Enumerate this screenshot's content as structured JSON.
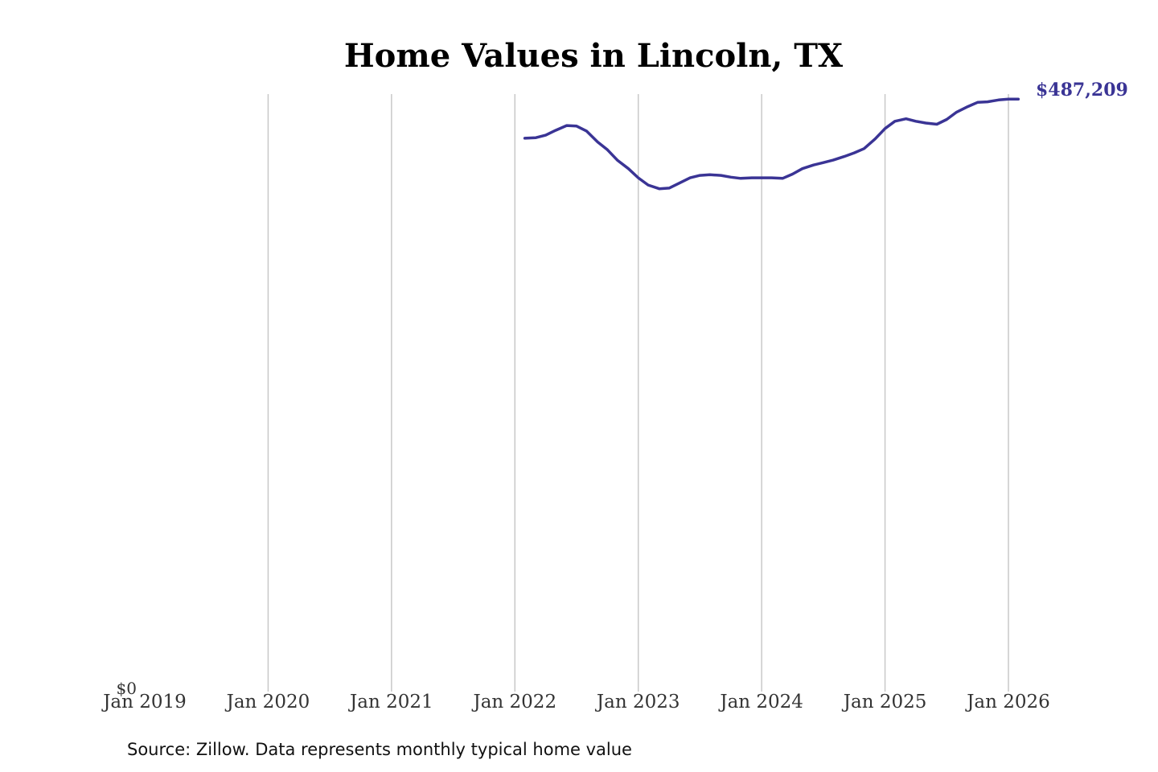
{
  "chart_data": {
    "type": "line",
    "title": "Home Values in Lincoln, TX",
    "source": "Source: Zillow. Data represents monthly typical home value",
    "x_ticks": [
      "Jan 2019",
      "Jan 2020",
      "Jan 2021",
      "Jan 2022",
      "Jan 2023",
      "Jan 2024",
      "Jan 2025",
      "Jan 2026"
    ],
    "y_tick_label": "$0",
    "ylim": [
      0,
      490000
    ],
    "xlim": [
      2019.0,
      2026.0
    ],
    "grid": "vertical",
    "line_color": "#3a3495",
    "end_label": "$487,209",
    "series": [
      {
        "x": [
          2022.08,
          2022.17,
          2022.25,
          2022.33,
          2022.42,
          2022.5,
          2022.58,
          2022.67,
          2022.75,
          2022.83,
          2022.92,
          2023.0,
          2023.08,
          2023.17,
          2023.25,
          2023.33,
          2023.42,
          2023.5,
          2023.58,
          2023.67,
          2023.75,
          2023.83,
          2023.92,
          2024.0,
          2024.08,
          2024.17,
          2024.25,
          2024.33,
          2024.42,
          2024.5,
          2024.58,
          2024.67,
          2024.75,
          2024.83,
          2024.92,
          2025.0,
          2025.08,
          2025.17,
          2025.25,
          2025.33,
          2025.42,
          2025.5,
          2025.58,
          2025.67,
          2025.75,
          2025.83,
          2025.92,
          2026.0,
          2026.08
        ],
        "values": [
          455000,
          455500,
          457500,
          461500,
          465500,
          465000,
          461000,
          452000,
          445500,
          437000,
          430000,
          422500,
          416500,
          413500,
          414000,
          418000,
          422500,
          424500,
          425000,
          424500,
          423000,
          422000,
          422500,
          422500,
          422500,
          422000,
          425500,
          430000,
          433000,
          435000,
          437000,
          440000,
          443000,
          446500,
          454500,
          463000,
          469000,
          471000,
          469000,
          467500,
          466500,
          470500,
          476500,
          481000,
          484500,
          485000,
          486500,
          487209,
          487209
        ]
      }
    ]
  }
}
